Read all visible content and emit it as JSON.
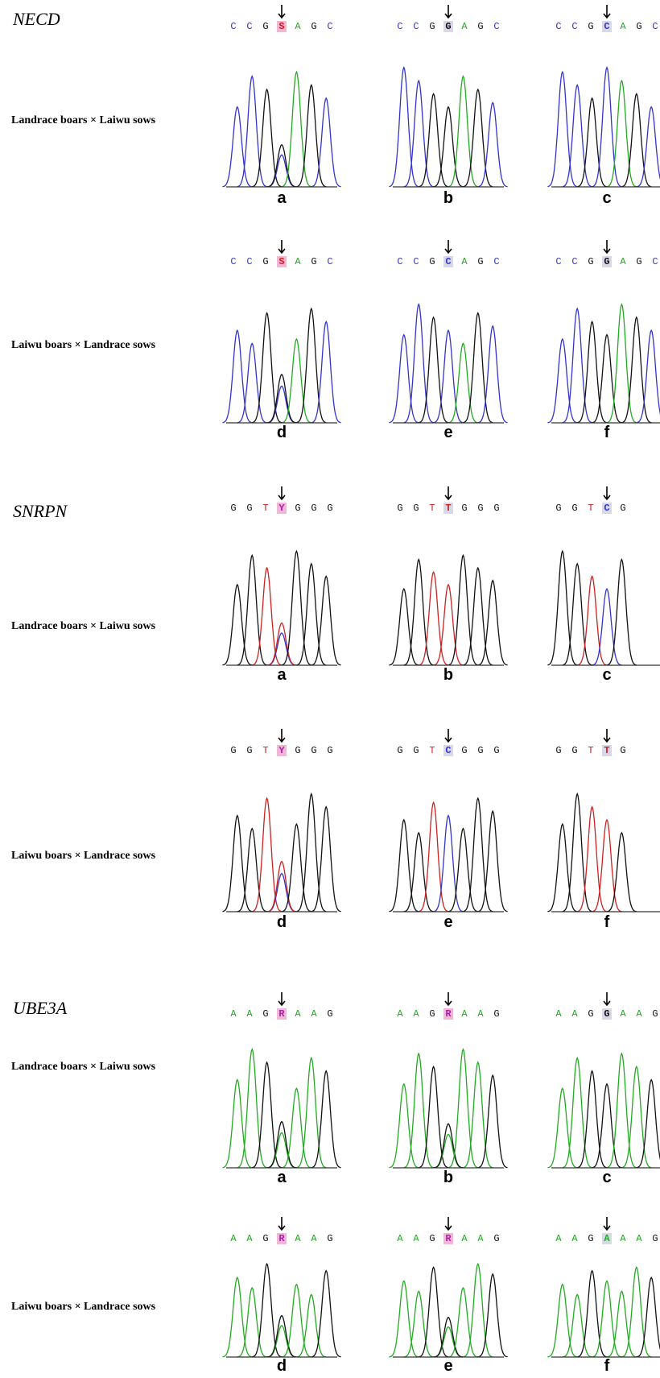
{
  "genes": [
    {
      "name": "NECD",
      "rows": [
        {
          "cross": "Landrace boars × Laiwu sows",
          "panels": [
            {
              "label": "a",
              "before": [
                "C",
                "C",
                "G"
              ],
              "site": "S",
              "after": [
                "A",
                "G",
                "C"
              ]
            },
            {
              "label": "b",
              "before": [
                "C",
                "C",
                "G"
              ],
              "site": "G",
              "after": [
                "A",
                "G",
                "C"
              ]
            },
            {
              "label": "c",
              "before": [
                "C",
                "C",
                "G"
              ],
              "site": "C",
              "after": [
                "A",
                "G",
                "C"
              ]
            }
          ]
        },
        {
          "cross": "Laiwu boars × Landrace sows",
          "panels": [
            {
              "label": "d",
              "before": [
                "C",
                "C",
                "G"
              ],
              "site": "S",
              "after": [
                "A",
                "G",
                "C"
              ]
            },
            {
              "label": "e",
              "before": [
                "C",
                "C",
                "G"
              ],
              "site": "C",
              "after": [
                "A",
                "G",
                "C"
              ]
            },
            {
              "label": "f",
              "before": [
                "C",
                "C",
                "G"
              ],
              "site": "G",
              "after": [
                "A",
                "G",
                "C"
              ]
            }
          ]
        }
      ]
    },
    {
      "name": "SNRPN",
      "rows": [
        {
          "cross": "Landrace boars × Laiwu sows",
          "panels": [
            {
              "label": "a",
              "before": [
                "G",
                "G",
                "T"
              ],
              "site": "Y",
              "after": [
                "G",
                "G",
                "G"
              ]
            },
            {
              "label": "b",
              "before": [
                "G",
                "G",
                "T"
              ],
              "site": "T",
              "after": [
                "G",
                "G",
                "G"
              ]
            },
            {
              "label": "c",
              "before": [
                "G",
                "G",
                "T"
              ],
              "site": "C",
              "after": [
                "G"
              ]
            }
          ]
        },
        {
          "cross": "Laiwu boars × Landrace sows",
          "panels": [
            {
              "label": "d",
              "before": [
                "G",
                "G",
                "T"
              ],
              "site": "Y",
              "after": [
                "G",
                "G",
                "G"
              ]
            },
            {
              "label": "e",
              "before": [
                "G",
                "G",
                "T"
              ],
              "site": "C",
              "after": [
                "G",
                "G",
                "G"
              ]
            },
            {
              "label": "f",
              "before": [
                "G",
                "G",
                "T"
              ],
              "site": "T",
              "after": [
                "G"
              ]
            }
          ]
        }
      ]
    },
    {
      "name": "UBE3A",
      "rows": [
        {
          "cross": "Landrace boars × Laiwu sows",
          "panels": [
            {
              "label": "a",
              "before": [
                "A",
                "A",
                "G"
              ],
              "site": "R",
              "after": [
                "A",
                "A",
                "G"
              ]
            },
            {
              "label": "b",
              "before": [
                "A",
                "A",
                "G"
              ],
              "site": "R",
              "after": [
                "A",
                "A",
                "G"
              ]
            },
            {
              "label": "c",
              "before": [
                "A",
                "A",
                "G"
              ],
              "site": "G",
              "after": [
                "A",
                "A",
                "G"
              ]
            }
          ]
        },
        {
          "cross": "Laiwu boars × Landrace sows",
          "panels": [
            {
              "label": "d",
              "before": [
                "A",
                "A",
                "G"
              ],
              "site": "R",
              "after": [
                "A",
                "A",
                "G"
              ]
            },
            {
              "label": "e",
              "before": [
                "A",
                "A",
                "G"
              ],
              "site": "R",
              "after": [
                "A",
                "A",
                "G"
              ]
            },
            {
              "label": "f",
              "before": [
                "A",
                "A",
                "G"
              ],
              "site": "A",
              "after": [
                "A",
                "A",
                "G"
              ]
            }
          ]
        }
      ]
    }
  ]
}
